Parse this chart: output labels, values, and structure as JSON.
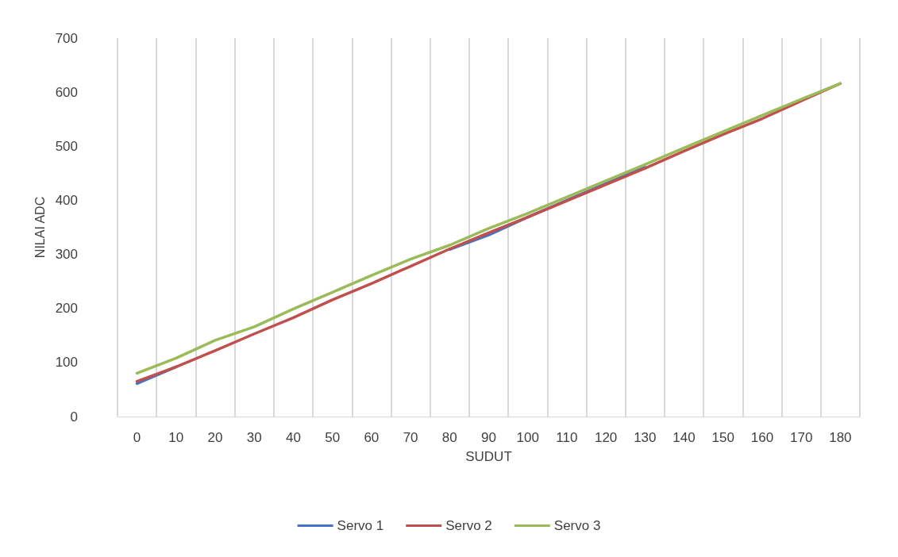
{
  "chart_data": {
    "type": "line",
    "xlabel": "SUDUT",
    "ylabel": "NILAI ADC",
    "categories": [
      "0",
      "10",
      "20",
      "30",
      "40",
      "50",
      "60",
      "70",
      "80",
      "90",
      "100",
      "110",
      "120",
      "130",
      "140",
      "150",
      "160",
      "170",
      "180"
    ],
    "series": [
      {
        "name": "Servo 1",
        "color": "#4472c4",
        "values": [
          61,
          92,
          null,
          null,
          null,
          null,
          null,
          null,
          309,
          336,
          369,
          400,
          431,
          461,
          null,
          null,
          null,
          null,
          null
        ]
      },
      {
        "name": "Servo 2",
        "color": "#c0504d",
        "values": [
          65,
          92,
          122,
          153,
          183,
          216,
          246,
          278,
          310,
          340,
          369,
          399,
          429,
          459,
          491,
          522,
          551,
          584,
          616
        ]
      },
      {
        "name": "Servo 3",
        "color": "#9bbb59",
        "values": [
          80,
          108,
          141,
          166,
          199,
          230,
          261,
          291,
          317,
          348,
          376,
          406,
          436,
          466,
          497,
          527,
          557,
          587,
          616
        ]
      }
    ],
    "ylim": [
      0,
      700
    ],
    "yticks": [
      0,
      100,
      200,
      300,
      400,
      500,
      600,
      700
    ],
    "grid": "x",
    "legend": "bottom",
    "marker": "none",
    "line_style": "solid"
  }
}
